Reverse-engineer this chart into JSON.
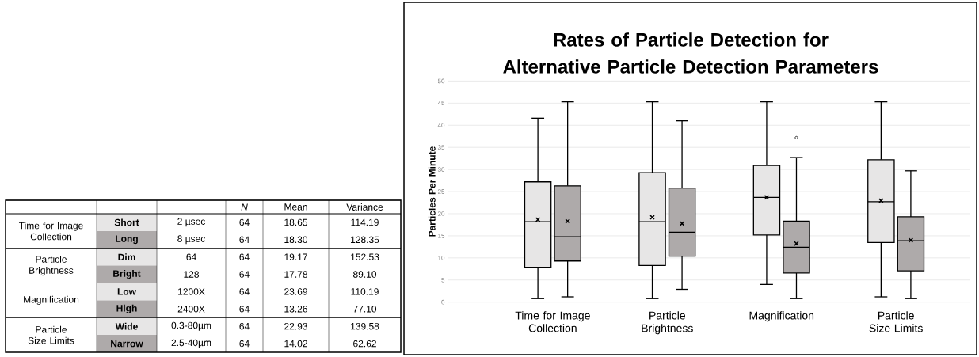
{
  "chart_data": [
    {
      "type": "other",
      "annotations": [
        "*N*",
        "Mean",
        "Variance",
        "Time for Image Collection",
        "**Short**",
        "2 µsec",
        "64",
        "18.65",
        "114.19",
        "**Long**",
        "8 µsec",
        "64",
        "18.30",
        "128.35",
        "Particle Brightness",
        "**Dim**",
        "64",
        "64",
        "19.17",
        "152.53",
        "**Bright**",
        "128",
        "64",
        "17.78",
        "89.10",
        "Magnification",
        "**Low**",
        "1200X",
        "64",
        "23.69",
        "110.19",
        "**High**",
        "2400X",
        "64",
        "13.26",
        "77.10",
        "Particle Size Limits",
        "**Wide**",
        "0.3-80µm",
        "64",
        "22.93",
        "139.58",
        "**Narrow**",
        "2.5-40µm",
        "64",
        "14.02",
        "62.62"
      ]
    },
    {
      "type": "box",
      "title": "Rates of Particle Detection for Alternative Particle Detection Parameters",
      "ylabel": "Particles Per Minute",
      "categories": [
        "Time for Image Collection",
        "Particle Brightness",
        "Magnification",
        "Particle Size Limits"
      ],
      "ylim": [
        0,
        50
      ],
      "yticks": [
        0,
        5,
        10,
        15,
        20,
        25,
        30,
        35,
        40,
        45,
        50
      ],
      "grid": "y",
      "marker": "cross",
      "series": [
        {
          "color": "#e7e6e6",
          "boxes": [
            {
              "low": 0.8,
              "q1": 7.9,
              "median": 18.2,
              "q3": 27.2,
              "high": 41.6,
              "mean": 18.65
            },
            {
              "low": 0.8,
              "q1": 8.3,
              "median": 18.2,
              "q3": 29.3,
              "high": 45.3,
              "mean": 19.17
            },
            {
              "low": 4.0,
              "q1": 15.2,
              "median": 23.7,
              "q3": 30.9,
              "high": 45.3,
              "mean": 23.69
            },
            {
              "low": 1.2,
              "q1": 13.5,
              "median": 22.7,
              "q3": 32.2,
              "high": 45.3,
              "mean": 22.93
            }
          ]
        },
        {
          "color": "#aeaaaa",
          "boxes": [
            {
              "low": 1.2,
              "q1": 9.3,
              "median": 14.8,
              "q3": 26.3,
              "high": 45.3,
              "mean": 18.3
            },
            {
              "low": 2.9,
              "q1": 10.4,
              "median": 15.8,
              "q3": 25.8,
              "high": 41.0,
              "mean": 17.78
            },
            {
              "low": 0.8,
              "q1": 6.6,
              "median": 12.4,
              "q3": 18.3,
              "high": 32.7,
              "mean": 13.26,
              "outliers": [
                37.2
              ]
            },
            {
              "low": 0.8,
              "q1": 7.1,
              "median": 13.9,
              "q3": 19.3,
              "high": 29.7,
              "mean": 14.02
            }
          ]
        }
      ]
    }
  ]
}
